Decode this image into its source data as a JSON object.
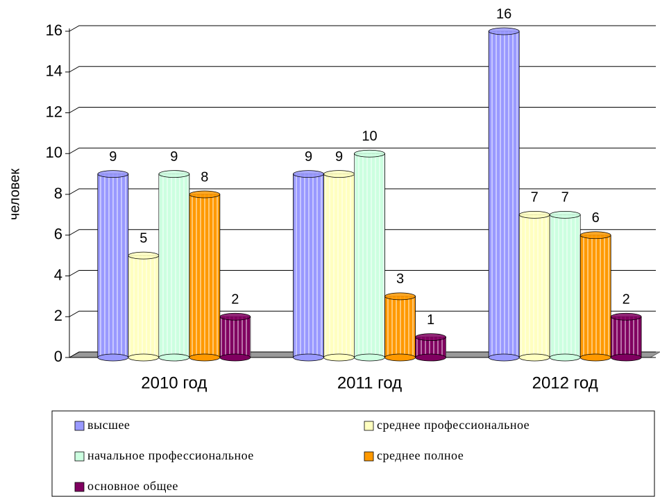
{
  "chart_data": {
    "type": "bar",
    "ylabel": "человек",
    "categories": [
      "2010 год",
      "2011 год",
      "2012 год"
    ],
    "series": [
      {
        "name": "высшее",
        "color": "#9999ff",
        "values": [
          9,
          9,
          16
        ]
      },
      {
        "name": "среднее профессиональное",
        "color": "#ffffc0",
        "values": [
          5,
          9,
          7
        ]
      },
      {
        "name": "начальное профессиональное",
        "color": "#ccffe0",
        "values": [
          9,
          10,
          7
        ]
      },
      {
        "name": "среднее полное",
        "color": "#ff9900",
        "values": [
          8,
          3,
          6
        ]
      },
      {
        "name": "основное общее",
        "color": "#800060",
        "values": [
          2,
          1,
          2
        ]
      }
    ],
    "ylim": [
      0,
      16
    ],
    "yticks": [
      0,
      2,
      4,
      6,
      8,
      10,
      12,
      14,
      16
    ],
    "grid": true
  }
}
